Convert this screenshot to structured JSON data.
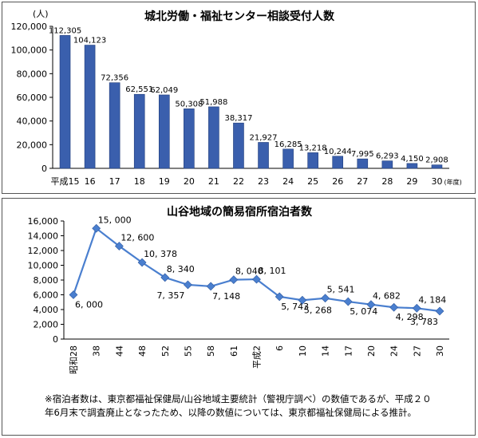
{
  "chart_data": [
    {
      "type": "bar",
      "title": "城北労働・福祉センター相談受付人数",
      "ylabel": "(人)",
      "xlabel": "",
      "x_unit": "(年度)",
      "ylim": [
        0,
        120000
      ],
      "yticks": [
        "0",
        "20,000",
        "40,000",
        "60,000",
        "80,000",
        "100,000",
        "120,000"
      ],
      "categories": [
        "平成15",
        "16",
        "17",
        "18",
        "19",
        "20",
        "21",
        "22",
        "23",
        "24",
        "25",
        "26",
        "27",
        "28",
        "29",
        "30"
      ],
      "values": [
        112305,
        104123,
        72356,
        62551,
        62049,
        50308,
        51988,
        38317,
        21927,
        16285,
        13218,
        10244,
        7995,
        6293,
        4150,
        2908
      ],
      "value_labels": [
        "112,305",
        "104,123",
        "72,356",
        "62,551",
        "62,049",
        "50,308",
        "51,988",
        "38,317",
        "21,927",
        "16,285",
        "13,218",
        "10,244",
        "7,995",
        "6,293",
        "4,150",
        "2,908"
      ],
      "bar_color": "#3a5fad",
      "grid": false
    },
    {
      "type": "line",
      "title": "山谷地域の簡易宿所宿泊者数",
      "ylim": [
        0,
        16000
      ],
      "yticks": [
        "0",
        "2,000",
        "4,000",
        "6,000",
        "8,000",
        "10,000",
        "12,000",
        "14,000",
        "16,000"
      ],
      "categories": [
        "昭和28",
        "38",
        "44",
        "48",
        "52",
        "55",
        "58",
        "61",
        "平成2",
        "6",
        "10",
        "14",
        "17",
        "20",
        "24",
        "27",
        "30"
      ],
      "values": [
        6000,
        15000,
        12600,
        10378,
        8340,
        7357,
        7148,
        8040,
        8101,
        5743,
        5268,
        5541,
        5074,
        4682,
        4298,
        4184,
        3783
      ],
      "value_labels": [
        "6, 000",
        "15, 000",
        "12, 600",
        "10, 378",
        "8, 340",
        "7, 357",
        "7, 148",
        "8, 040",
        "8, 101",
        "5, 743",
        "5, 268",
        "5, 541",
        "5, 074",
        "4, 682",
        "4, 298",
        "4, 184",
        "3, 783"
      ],
      "line_color": "#4a7fcf",
      "grid": false
    }
  ],
  "footnote": {
    "line1": "※宿泊者数は、東京都福祉保健局/山谷地域主要統計（警視庁調べ）の数値であるが、平成２０",
    "line2": "年6月末で調査廃止となったため、以降の数値については、東京都福祉保健局による推計。"
  }
}
